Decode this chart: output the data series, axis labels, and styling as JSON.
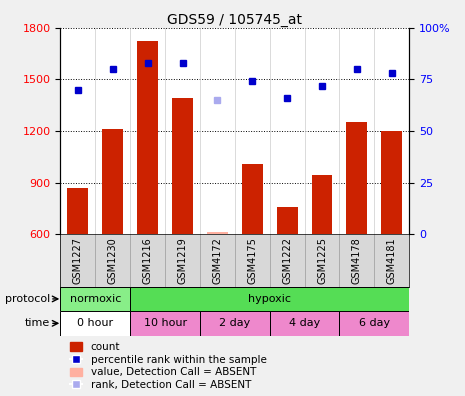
{
  "title": "GDS59 / 105745_at",
  "samples": [
    "GSM1227",
    "GSM1230",
    "GSM1216",
    "GSM1219",
    "GSM4172",
    "GSM4175",
    "GSM1222",
    "GSM1225",
    "GSM4178",
    "GSM4181"
  ],
  "counts": [
    870,
    1210,
    1720,
    1390,
    610,
    1010,
    760,
    945,
    1250,
    1200
  ],
  "ranks": [
    70,
    80,
    83,
    83,
    null,
    74,
    66,
    72,
    80,
    78
  ],
  "absent_count": [
    null,
    null,
    null,
    null,
    610,
    null,
    null,
    null,
    null,
    null
  ],
  "absent_rank": [
    null,
    null,
    null,
    null,
    65,
    null,
    null,
    null,
    null,
    null
  ],
  "ylim_left": [
    600,
    1800
  ],
  "ylim_right": [
    0,
    100
  ],
  "yticks_left": [
    600,
    900,
    1200,
    1500,
    1800
  ],
  "yticks_right": [
    0,
    25,
    50,
    75,
    100
  ],
  "bar_color": "#cc2200",
  "absent_bar_color": "#ffb0a0",
  "rank_color": "#0000cc",
  "absent_rank_color": "#aaaaee",
  "grid_color": "#000000",
  "protocol_labels": [
    "normoxic",
    "hypoxic"
  ],
  "protocol_n_samples": [
    2,
    8
  ],
  "protocol_color_normoxic": "#88ee88",
  "protocol_color_hypoxic": "#55dd55",
  "time_labels": [
    "0 hour",
    "10 hour",
    "2 day",
    "4 day",
    "6 day"
  ],
  "time_n_samples": [
    2,
    2,
    2,
    2,
    2
  ],
  "time_color_0hour": "#ffffff",
  "time_color_rest": "#ee88cc",
  "bg_color": "#f0f0f0",
  "plot_bg": "#ffffff",
  "label_area_color": "#d8d8d8"
}
